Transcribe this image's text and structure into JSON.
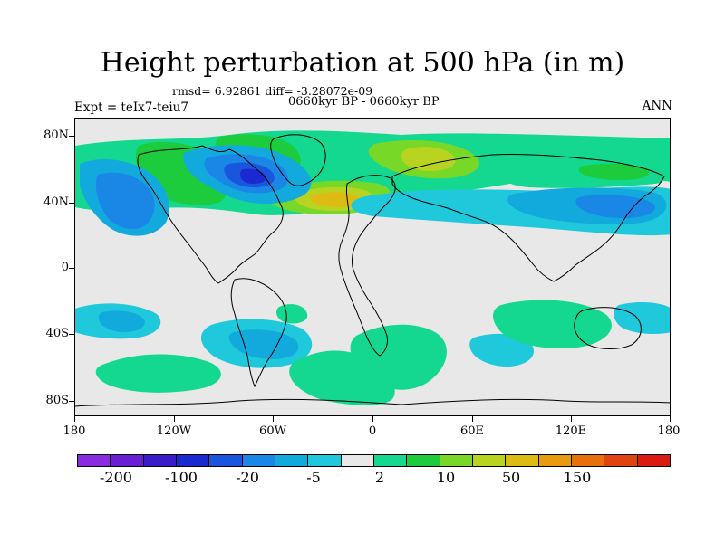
{
  "title": "Height perturbation at 500 hPa (in m)",
  "stats": "rmsd= 6.92861 diff= -3.28072e-09",
  "period": "0660kyr BP - 0660kyr BP",
  "experiment": "Expt = teIx7-teiu7",
  "season": "ANN",
  "lat_labels": [
    "80N",
    "40N",
    "0",
    "40S",
    "80S"
  ],
  "lon_labels": [
    "180",
    "120W",
    "60W",
    "0",
    "60E",
    "120E",
    "180"
  ],
  "colorbar": {
    "colors": [
      "#8a2be2",
      "#6a1fd4",
      "#3a1cc8",
      "#1a2ad0",
      "#1a55dd",
      "#1a86e6",
      "#12aadd",
      "#20c8dc",
      "#e8e8e8",
      "#14d890",
      "#1ccc3c",
      "#78d828",
      "#b8d420",
      "#dcbc14",
      "#e89a10",
      "#e8700c",
      "#e04410",
      "#dc1a14"
    ],
    "labels": [
      "-200",
      "-100",
      "-20",
      "-5",
      "2",
      "10",
      "50",
      "150"
    ]
  }
}
